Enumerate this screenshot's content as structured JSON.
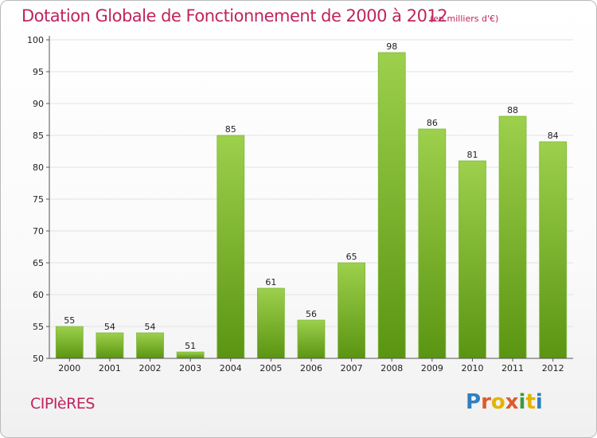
{
  "title": "Dotation Globale de Fonctionnement de 2000 à 2012",
  "subtitle": "(en milliers d'€)",
  "commune": "CIPIèRES",
  "logo": {
    "text": "Proxiti"
  },
  "colors": {
    "title": "#c0245e",
    "bar_light": "#9dd04c",
    "bar_dark": "#5a9512",
    "axis": "#555555"
  },
  "chart_data": {
    "type": "bar",
    "title": "Dotation Globale de Fonctionnement de 2000 à 2012",
    "subtitle": "(en milliers d'€)",
    "categories": [
      "2000",
      "2001",
      "2002",
      "2003",
      "2004",
      "2005",
      "2006",
      "2007",
      "2008",
      "2009",
      "2010",
      "2011",
      "2012"
    ],
    "values": [
      55,
      54,
      54,
      51,
      85,
      61,
      56,
      65,
      98,
      86,
      81,
      88,
      84
    ],
    "ylim": [
      50,
      100
    ],
    "yticks": [
      50,
      55,
      60,
      65,
      70,
      75,
      80,
      85,
      90,
      95,
      100
    ],
    "grid": true,
    "legend": "none"
  }
}
